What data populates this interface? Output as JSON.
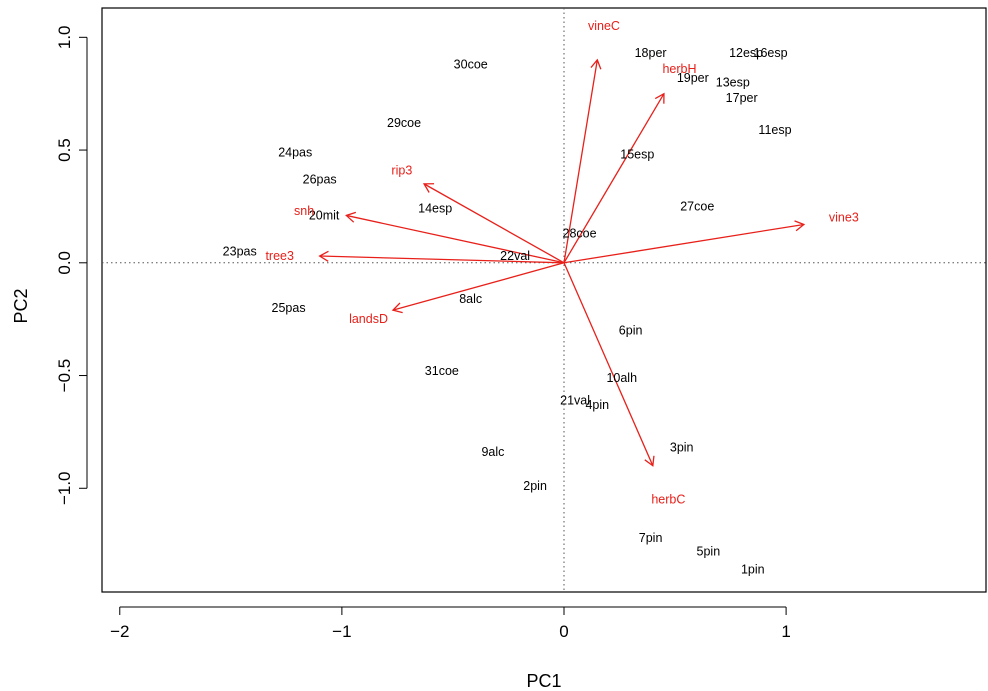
{
  "chart_data": {
    "type": "scatter",
    "title": "",
    "xlabel": "PC1",
    "ylabel": "PC2",
    "xlim": [
      -2.08,
      1.9
    ],
    "ylim": [
      -1.46,
      1.13
    ],
    "xticks": [
      -2,
      -1,
      0,
      1
    ],
    "yticks": [
      -1.0,
      -0.5,
      0.0,
      0.5,
      1.0
    ],
    "xtick_labels": [
      "−2",
      "−1",
      "0",
      "1"
    ],
    "ytick_labels": [
      "−1.0",
      "−0.5",
      "0.0",
      "0.5",
      "1.0"
    ],
    "reference_lines": {
      "x": 0,
      "y": 0
    },
    "colors": {
      "points": "#000000",
      "loadings": "#e8201a"
    },
    "points": [
      {
        "label": "30coe",
        "x": -0.42,
        "y": 0.88
      },
      {
        "label": "18per",
        "x": 0.39,
        "y": 0.93
      },
      {
        "label": "12esp",
        "x": 0.82,
        "y": 0.93
      },
      {
        "label": "16esp",
        "x": 0.93,
        "y": 0.93
      },
      {
        "label": "19per",
        "x": 0.58,
        "y": 0.82
      },
      {
        "label": "13esp",
        "x": 0.76,
        "y": 0.8
      },
      {
        "label": "17per",
        "x": 0.8,
        "y": 0.73
      },
      {
        "label": "11esp",
        "x": 0.95,
        "y": 0.59
      },
      {
        "label": "29coe",
        "x": -0.72,
        "y": 0.62
      },
      {
        "label": "24pas",
        "x": -1.21,
        "y": 0.49
      },
      {
        "label": "15esp",
        "x": 0.33,
        "y": 0.48
      },
      {
        "label": "26pas",
        "x": -1.1,
        "y": 0.37
      },
      {
        "label": "14esp",
        "x": -0.58,
        "y": 0.24
      },
      {
        "label": "20mit",
        "x": -1.08,
        "y": 0.21
      },
      {
        "label": "27coe",
        "x": 0.6,
        "y": 0.25
      },
      {
        "label": "28coe",
        "x": 0.07,
        "y": 0.13
      },
      {
        "label": "23pas",
        "x": -1.46,
        "y": 0.05
      },
      {
        "label": "22val",
        "x": -0.22,
        "y": 0.03
      },
      {
        "label": "8alc",
        "x": -0.42,
        "y": -0.16
      },
      {
        "label": "25pas",
        "x": -1.24,
        "y": -0.2
      },
      {
        "label": "6pin",
        "x": 0.3,
        "y": -0.3
      },
      {
        "label": "31coe",
        "x": -0.55,
        "y": -0.48
      },
      {
        "label": "10alh",
        "x": 0.26,
        "y": -0.51
      },
      {
        "label": "21val",
        "x": 0.05,
        "y": -0.61
      },
      {
        "label": "4pin",
        "x": 0.15,
        "y": -0.63
      },
      {
        "label": "9alc",
        "x": -0.32,
        "y": -0.84
      },
      {
        "label": "3pin",
        "x": 0.53,
        "y": -0.82
      },
      {
        "label": "2pin",
        "x": -0.13,
        "y": -0.99
      },
      {
        "label": "7pin",
        "x": 0.39,
        "y": -1.22
      },
      {
        "label": "5pin",
        "x": 0.65,
        "y": -1.28
      },
      {
        "label": "1pin",
        "x": 0.85,
        "y": -1.36
      }
    ],
    "loadings": [
      {
        "label": "vineC",
        "x": 0.15,
        "y": 0.9,
        "lx": 0.18,
        "ly": 1.05
      },
      {
        "label": "herbH",
        "x": 0.45,
        "y": 0.75,
        "lx": 0.52,
        "ly": 0.86
      },
      {
        "label": "vine3",
        "x": 1.08,
        "y": 0.17,
        "lx": 1.26,
        "ly": 0.2
      },
      {
        "label": "rip3",
        "x": -0.63,
        "y": 0.35,
        "lx": -0.73,
        "ly": 0.41
      },
      {
        "label": "snh",
        "x": -0.98,
        "y": 0.21,
        "lx": -1.17,
        "ly": 0.23
      },
      {
        "label": "tree3",
        "x": -1.1,
        "y": 0.03,
        "lx": -1.28,
        "ly": 0.03
      },
      {
        "label": "landsD",
        "x": -0.77,
        "y": -0.21,
        "lx": -0.88,
        "ly": -0.25
      },
      {
        "label": "herbC",
        "x": 0.4,
        "y": -0.9,
        "lx": 0.47,
        "ly": -1.05
      }
    ]
  }
}
